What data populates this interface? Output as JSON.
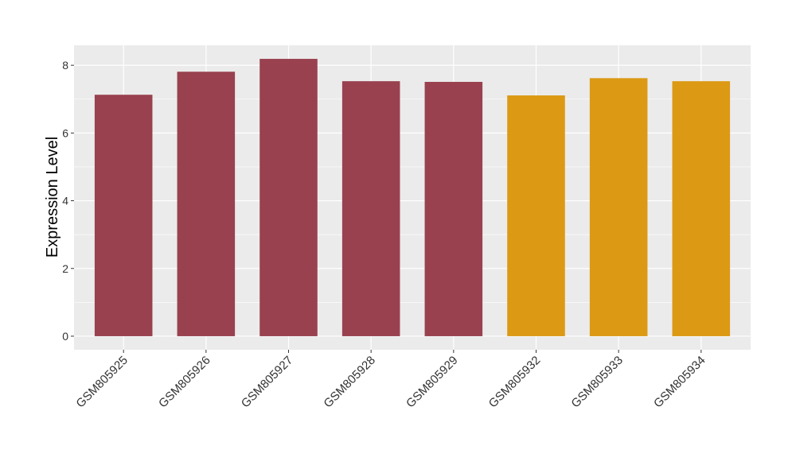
{
  "chart_data": {
    "type": "bar",
    "y_label": "Expression Level",
    "categories": [
      "GSM805925",
      "GSM805926",
      "GSM805927",
      "GSM805928",
      "GSM805929",
      "GSM805932",
      "GSM805933",
      "GSM805934"
    ],
    "values": [
      7.13,
      7.81,
      8.19,
      7.53,
      7.51,
      7.11,
      7.62,
      7.53
    ],
    "colors": [
      "#99414f",
      "#99414f",
      "#99414f",
      "#99414f",
      "#99414f",
      "#dc9914",
      "#dc9914",
      "#dc9914"
    ],
    "ylim": [
      -0.4,
      8.59
    ],
    "yticks": [
      0,
      2,
      4,
      6,
      8
    ],
    "minor_yticks": [
      1,
      3,
      5,
      7
    ],
    "grid": true
  }
}
